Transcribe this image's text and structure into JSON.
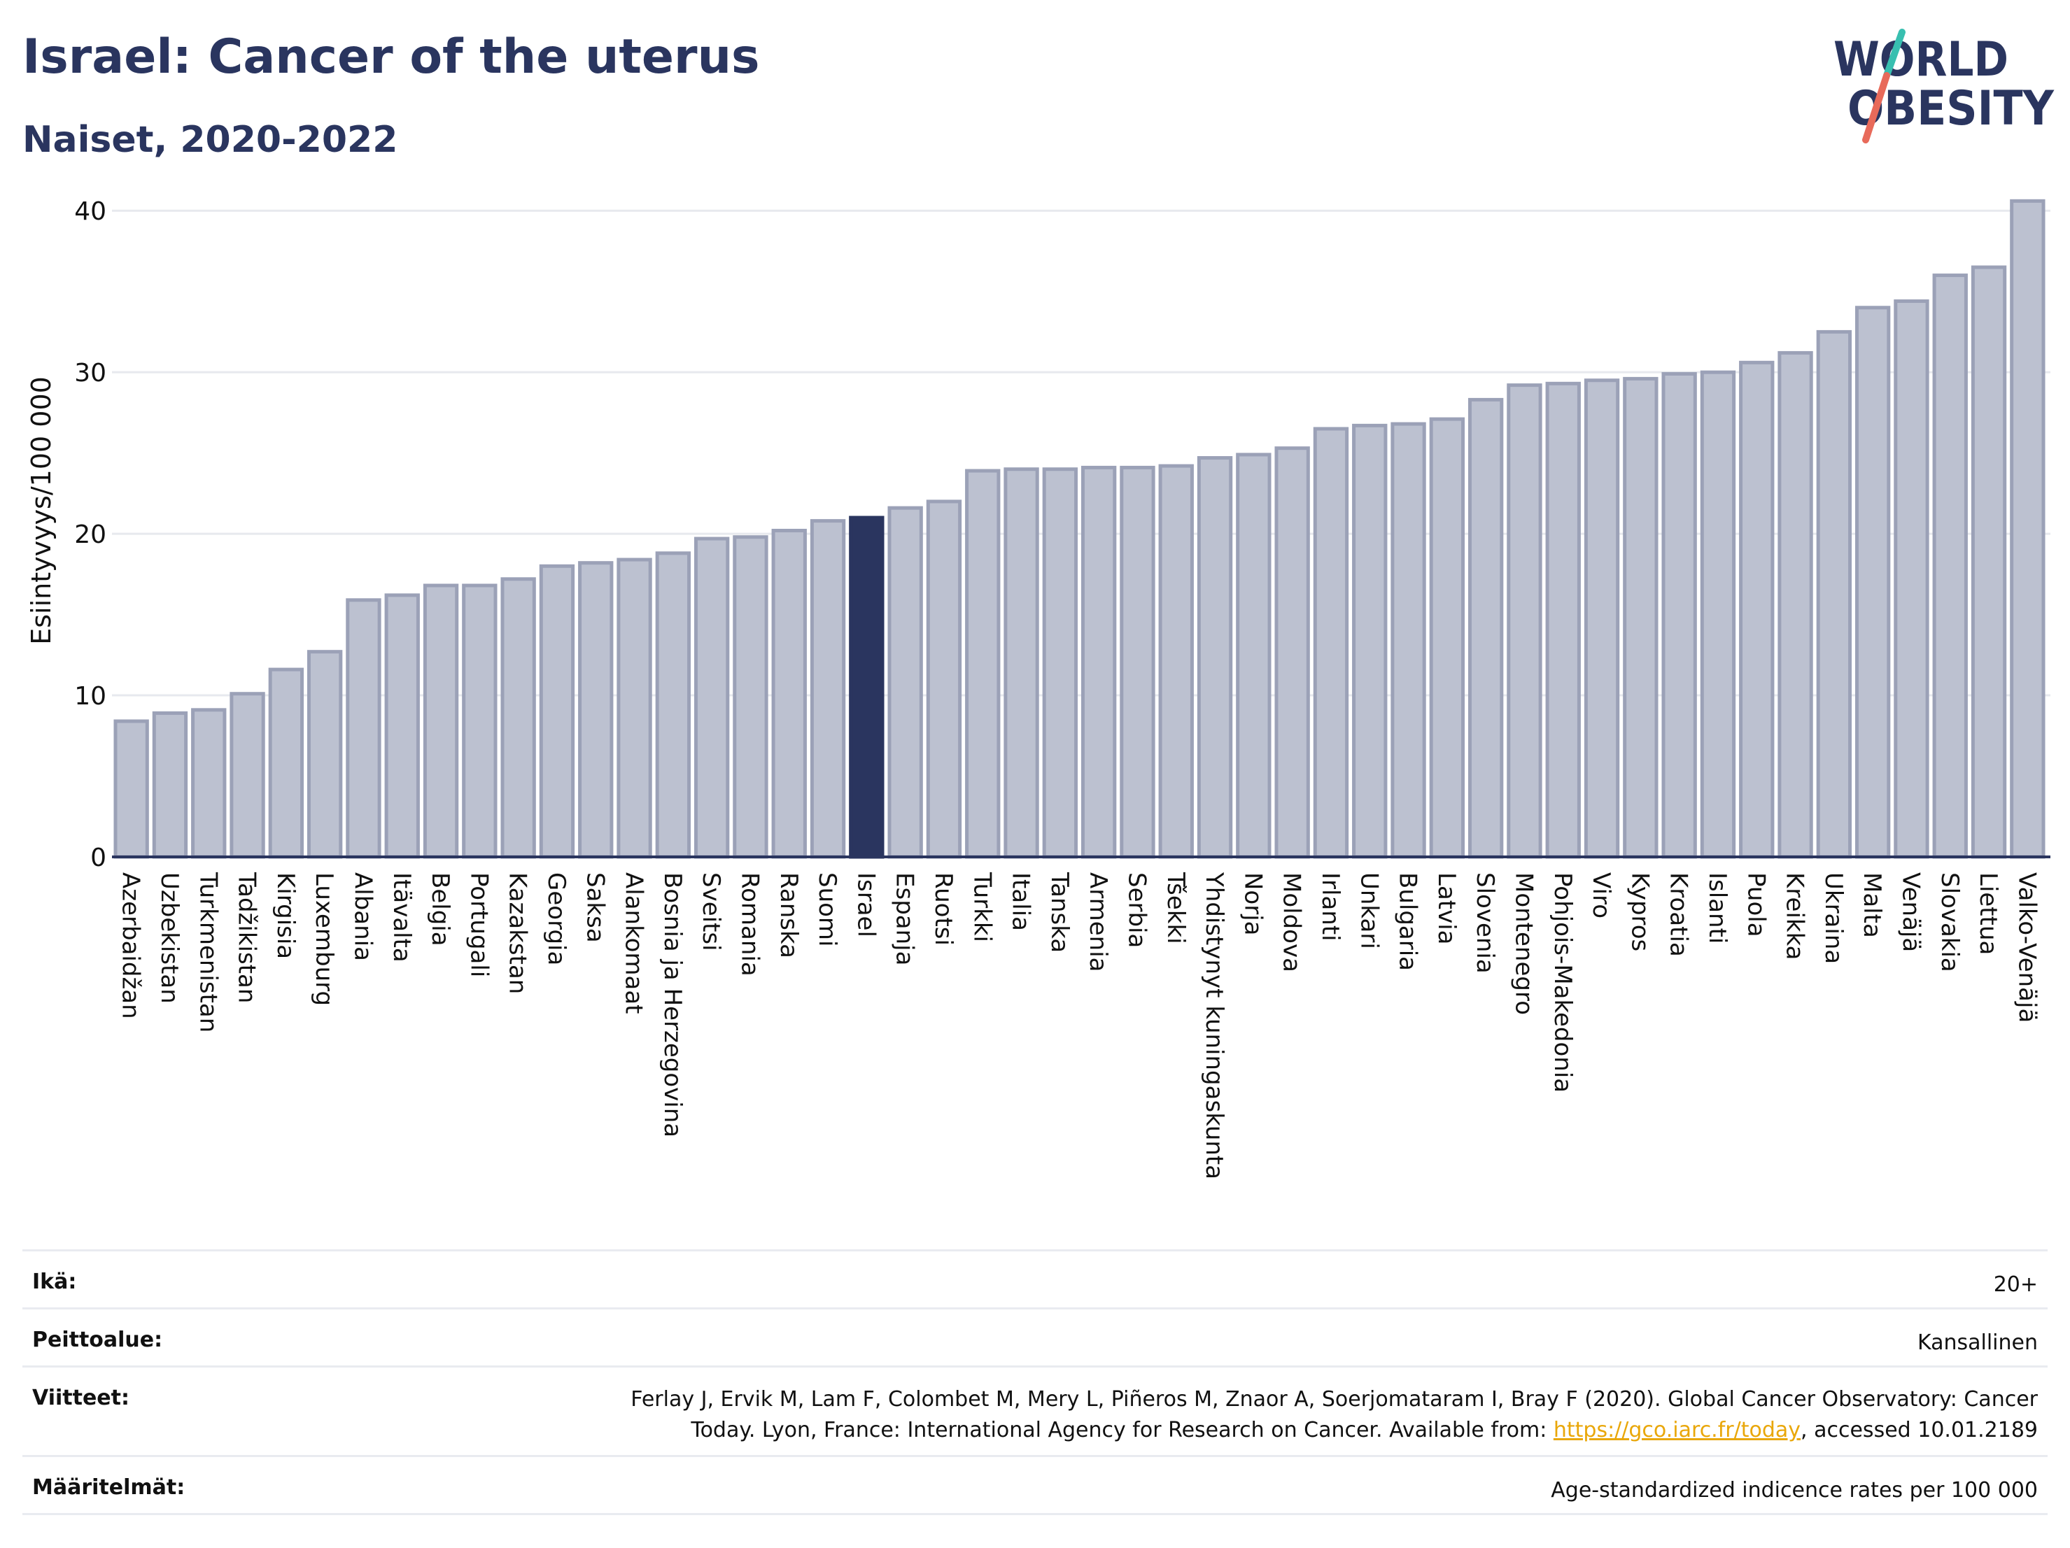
{
  "header": {
    "title": "Israel: Cancer of the uterus",
    "subtitle": "Naiset, 2020-2022"
  },
  "logo": {
    "line1": "WORLD",
    "line2": "OBESITY",
    "icon": "world-obesity-logo"
  },
  "chart_data": {
    "type": "bar",
    "ylabel": "Esiintyvyys/100 000",
    "ylim": [
      0,
      42
    ],
    "yticks": [
      0,
      10,
      20,
      30,
      40
    ],
    "grid": true,
    "highlight": "Israel",
    "colors": {
      "bar": "#bcc1d0",
      "bar_edge": "#9ba1b7",
      "highlight": "#2a355f",
      "grid": "#e7e9ee"
    },
    "categories": [
      "Azerbaidžan",
      "Uzbekistan",
      "Turkmenistan",
      "Tadžikistan",
      "Kirgisia",
      "Luxemburg",
      "Albania",
      "Itävalta",
      "Belgia",
      "Portugali",
      "Kazakstan",
      "Georgia",
      "Saksa",
      "Alankomaat",
      "Bosnia ja Herzegovina",
      "Sveitsi",
      "Romania",
      "Ranska",
      "Suomi",
      "Israel",
      "Espanja",
      "Ruotsi",
      "Turkki",
      "Italia",
      "Tanska",
      "Armenia",
      "Serbia",
      "Tšekki",
      "Yhdistynyt kuningaskunta",
      "Norja",
      "Moldova",
      "Irlanti",
      "Unkari",
      "Bulgaria",
      "Latvia",
      "Slovenia",
      "Montenegro",
      "Pohjois-Makedonia",
      "Viro",
      "Kypros",
      "Kroatia",
      "Islanti",
      "Puola",
      "Kreikka",
      "Ukraina",
      "Malta",
      "Venäjä",
      "Slovakia",
      "Liettua",
      "Valko-Venäjä"
    ],
    "values": [
      8.4,
      8.9,
      9.1,
      10.1,
      11.6,
      12.7,
      15.9,
      16.2,
      16.8,
      16.8,
      17.2,
      18.0,
      18.2,
      18.4,
      18.8,
      19.7,
      19.8,
      20.2,
      20.8,
      21.0,
      21.6,
      22.0,
      23.9,
      24.0,
      24.0,
      24.1,
      24.1,
      24.2,
      24.7,
      24.9,
      25.3,
      26.5,
      26.7,
      26.8,
      27.1,
      28.3,
      29.2,
      29.3,
      29.5,
      29.6,
      29.9,
      30.0,
      30.6,
      31.2,
      32.5,
      34.0,
      34.4,
      36.0,
      36.5,
      40.6
    ]
  },
  "info": {
    "age_label": "Ikä:",
    "age_value": "20+",
    "coverage_label": "Peittoalue:",
    "coverage_value": "Kansallinen",
    "refs_label": "Viitteet:",
    "refs_line1": "Ferlay J, Ervik M, Lam F, Colombet M, Mery L, Piñeros M, Znaor A, Soerjomataram I, Bray F (2020). Global Cancer Observatory: Cancer",
    "refs_line2_pre": "Today. Lyon, France: International Agency for Research on Cancer. Available from: ",
    "refs_link": "https://gco.iarc.fr/today",
    "refs_line2_post": ", accessed 10.01.2189",
    "defs_label": "Määritelmät:",
    "defs_value": "Age-standardized indicence rates per 100 000"
  }
}
